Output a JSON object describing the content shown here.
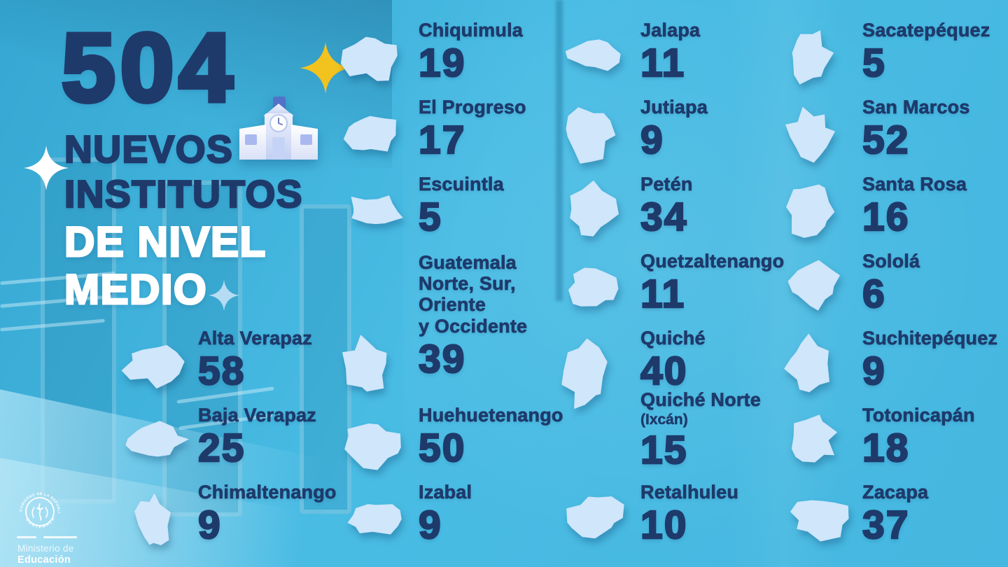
{
  "title": {
    "number": "504",
    "line1": "NUEVOS",
    "line2": "INSTITUTOS",
    "line3": "DE NIVEL",
    "line4": "MEDIO"
  },
  "footer_logo": {
    "seal_top": "GOBIERNO DE LA REPÚBLICA",
    "seal_bottom": "GUATEMALA",
    "ministry_line1": "Ministerio de",
    "ministry_line2": "Educación"
  },
  "icons": {
    "school": "school-building-icon",
    "sparkle_yellow": "sparkle-icon",
    "sparkle_white": "sparkle-icon",
    "sparkle_blue": "sparkle-icon",
    "seal": "government-seal-icon",
    "department_shapes": "department-map-silhouette"
  },
  "colors": {
    "background": "#47bae2",
    "navy_text": "#1e3a6b",
    "map_shape_blue": "#cfe6fb",
    "white_text": "#ffffff",
    "sparkle_yellow": "#f2c31f"
  },
  "departments": [
    {
      "name": "Alta Verapaz",
      "value": "58"
    },
    {
      "name": "Baja Verapaz",
      "value": "25"
    },
    {
      "name": "Chimaltenango",
      "value": "9"
    },
    {
      "name": "Chiquimula",
      "value": "19"
    },
    {
      "name": "El Progreso",
      "value": "17"
    },
    {
      "name": "Escuintla",
      "value": "5"
    },
    {
      "name": "Guatemala\nNorte, Sur,\nOriente\ny Occidente",
      "value": "39"
    },
    {
      "name": "Huehuetenango",
      "value": "50"
    },
    {
      "name": "Izabal",
      "value": "9"
    },
    {
      "name": "Jalapa",
      "value": "11"
    },
    {
      "name": "Jutiapa",
      "value": "9"
    },
    {
      "name": "Petén",
      "value": "34"
    },
    {
      "name": "Quetzaltenango",
      "value": "11"
    },
    {
      "name": "Quiché",
      "value": "40"
    },
    {
      "name": "Quiché Norte",
      "subname": "(Ixcán)",
      "value": "15"
    },
    {
      "name": "Retalhuleu",
      "value": "10"
    },
    {
      "name": "Sacatepéquez",
      "value": "5"
    },
    {
      "name": "San Marcos",
      "value": "52"
    },
    {
      "name": "Santa Rosa",
      "value": "16"
    },
    {
      "name": "Sololá",
      "value": "6"
    },
    {
      "name": "Suchitepéquez",
      "value": "9"
    },
    {
      "name": "Totonicapán",
      "value": "18"
    },
    {
      "name": "Zacapa",
      "value": "37"
    }
  ],
  "chart_data": {
    "type": "table",
    "title": "504 nuevos institutos de nivel medio",
    "categories": [
      "Alta Verapaz",
      "Baja Verapaz",
      "Chimaltenango",
      "Chiquimula",
      "El Progreso",
      "Escuintla",
      "Guatemala Norte, Sur, Oriente y Occidente",
      "Huehuetenango",
      "Izabal",
      "Jalapa",
      "Jutiapa",
      "Petén",
      "Quetzaltenango",
      "Quiché",
      "Quiché Norte (Ixcán)",
      "Retalhuleu",
      "Sacatepéquez",
      "San Marcos",
      "Santa Rosa",
      "Sololá",
      "Suchitepéquez",
      "Totonicapán",
      "Zacapa"
    ],
    "values": [
      58,
      25,
      9,
      19,
      17,
      5,
      39,
      50,
      9,
      11,
      9,
      34,
      11,
      40,
      15,
      10,
      5,
      52,
      16,
      6,
      9,
      18,
      37
    ],
    "total": 504
  }
}
